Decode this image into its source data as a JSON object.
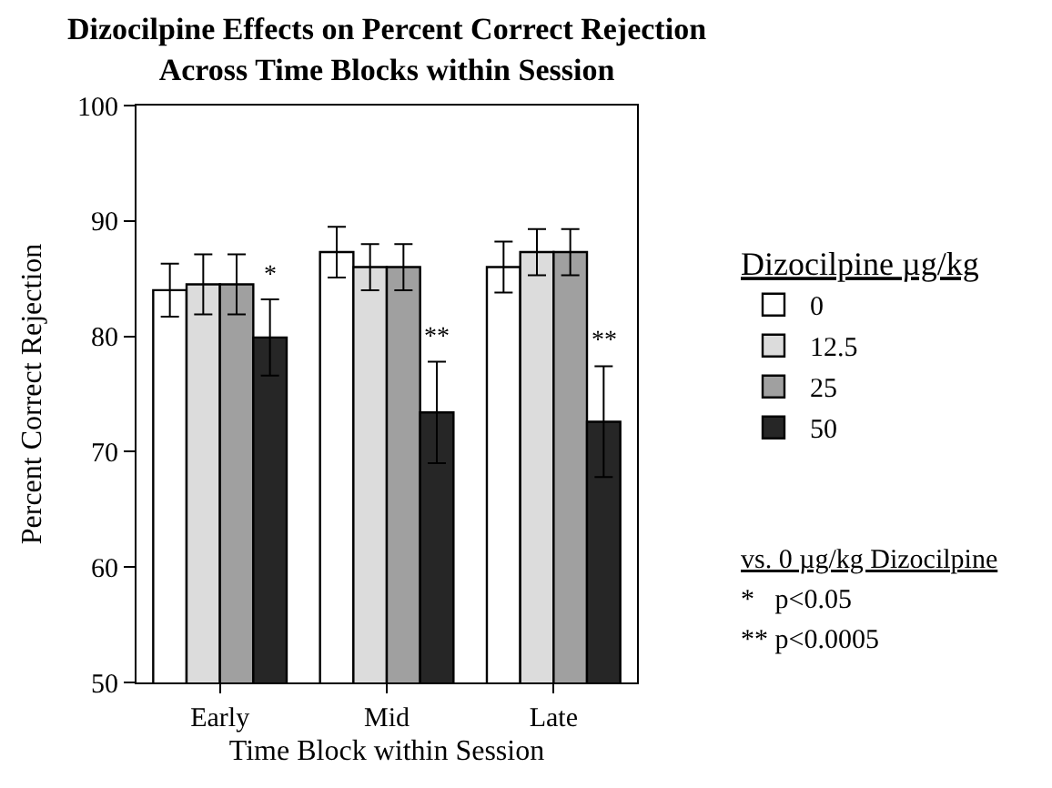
{
  "chart_data": {
    "type": "bar",
    "title": "Dizocilpine Effects on Percent Correct Rejection\nAcross Time Blocks within Session",
    "xlabel": "Time Block within Session",
    "ylabel": "Percent Correct Rejection",
    "legend_title": "Dizocilpine µg/kg",
    "categories": [
      "Early",
      "Mid",
      "Late"
    ],
    "series": [
      {
        "name": "0",
        "color": "#ffffff",
        "values": [
          84.0,
          87.3,
          86.0
        ],
        "errors": [
          2.3,
          2.2,
          2.2
        ]
      },
      {
        "name": "12.5",
        "color": "#dcdcdc",
        "values": [
          84.5,
          86.0,
          87.3
        ],
        "errors": [
          2.6,
          2.0,
          2.0
        ]
      },
      {
        "name": "25",
        "color": "#a0a0a0",
        "values": [
          84.5,
          86.0,
          87.3
        ],
        "errors": [
          2.6,
          2.0,
          2.0
        ]
      },
      {
        "name": "50",
        "color": "#262626",
        "values": [
          79.9,
          73.4,
          72.6
        ],
        "errors": [
          3.3,
          4.4,
          4.8
        ],
        "value_labels": [
          "*",
          "**",
          "**"
        ]
      }
    ],
    "ylim": [
      50,
      100
    ],
    "yticks": [
      50,
      60,
      70,
      80,
      90,
      100
    ],
    "legend": "right",
    "annotations": [
      "vs. 0 µg/kg Dizocilpine",
      "*   p<0.05",
      "** p<0.0005"
    ]
  }
}
